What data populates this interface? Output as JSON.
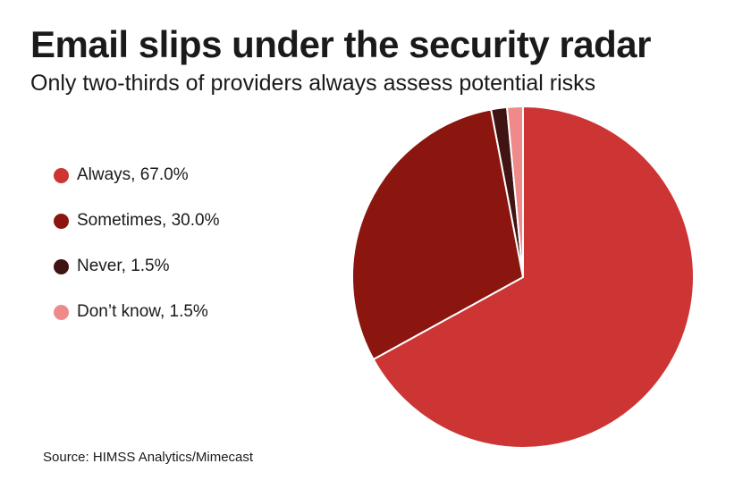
{
  "chart_data": {
    "type": "pie",
    "title": "Email slips under the security radar",
    "subtitle": "Only two-thirds of providers always assess potential risks",
    "categories": [
      "Always",
      "Sometimes",
      "Never",
      "Don’t know"
    ],
    "values": [
      67.0,
      30.0,
      1.5,
      1.5
    ],
    "unit": "%",
    "colors": [
      "#cd3535",
      "#8b160f",
      "#3f1412",
      "#f08a8a"
    ],
    "legend": [
      {
        "label": "Always, 67.0%",
        "color": "#cd3535"
      },
      {
        "label": "Sometimes, 30.0%",
        "color": "#8b160f"
      },
      {
        "label": "Never, 1.5%",
        "color": "#3f1412"
      },
      {
        "label": "Don’t know, 1.5%",
        "color": "#f08a8a"
      }
    ],
    "legend_position": "left",
    "source": "Source: HIMSS Analytics/Mimecast"
  }
}
